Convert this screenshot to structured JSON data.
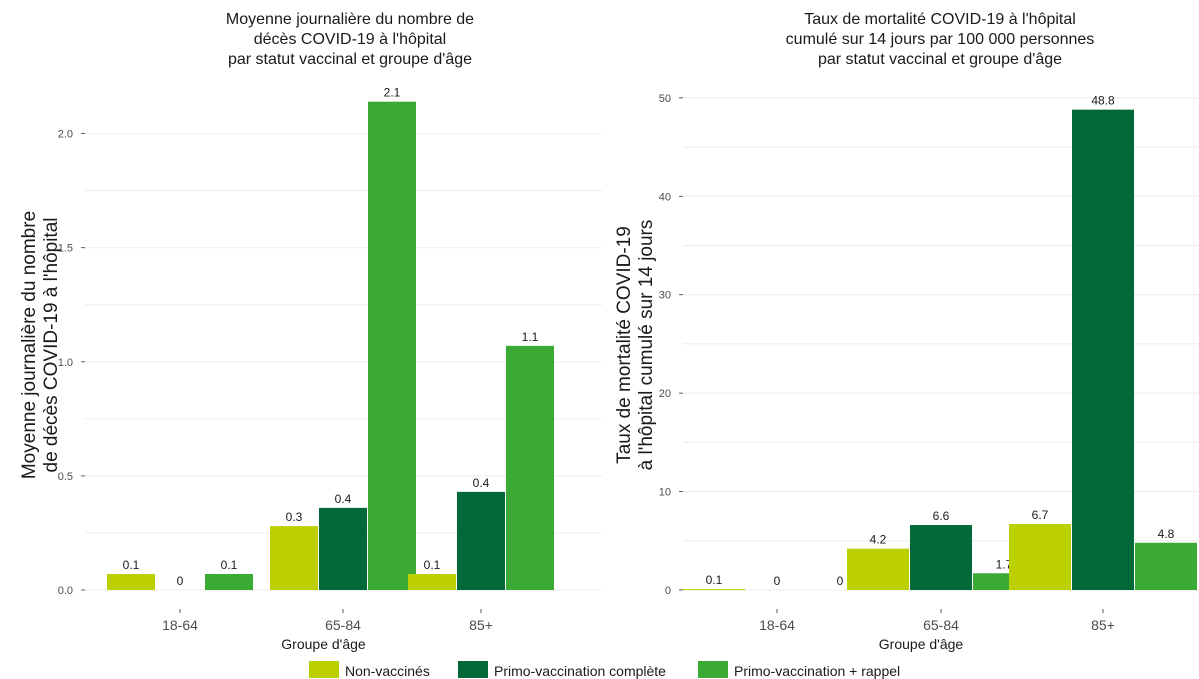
{
  "colors": {
    "Non-vaccinés": "#bccf00",
    "Primo-vaccination complète": "#006937",
    "Primo-vaccination + rappel": "#3aaa35"
  },
  "legend": [
    "Non-vaccinés",
    "Primo-vaccination complète",
    "Primo-vaccination + rappel"
  ],
  "chart_data": [
    {
      "type": "bar",
      "title": [
        "Moyenne journalière du nombre de",
        "décès COVID-19 à l'hôpital",
        "par statut vaccinal et groupe d'âge"
      ],
      "ylabel": [
        "Moyenne journalière du nombre",
        "de décès COVID-19 à l'hôpital"
      ],
      "xlabel": "Groupe d'âge",
      "categories": [
        "18-64",
        "65-84",
        "85+"
      ],
      "ylim": [
        0,
        2.2
      ],
      "yticks": [
        0,
        0.5,
        1.0,
        1.5,
        2.0
      ],
      "ytick_labels": [
        "0.0",
        "0.5",
        "1.0",
        "1.5",
        "2.0"
      ],
      "series": [
        {
          "name": "Non-vaccinés",
          "values": [
            0.07,
            0.28,
            0.07
          ],
          "labels": [
            "0.1",
            "0.3",
            "0.1"
          ]
        },
        {
          "name": "Primo-vaccination complète",
          "values": [
            0,
            0.36,
            0.43
          ],
          "labels": [
            "0",
            "0.4",
            "0.4"
          ]
        },
        {
          "name": "Primo-vaccination + rappel",
          "values": [
            0.07,
            2.14,
            1.07
          ],
          "labels": [
            "0.1",
            "2.1",
            "1.1"
          ]
        }
      ]
    },
    {
      "type": "bar",
      "title": [
        "Taux de mortalité COVID-19 à l'hôpital",
        "cumulé sur 14 jours par 100 000 personnes",
        "par statut vaccinal et groupe d'âge"
      ],
      "ylabel": [
        "Taux de mortalité COVID-19",
        "à l'hôpital cumulé sur 14 jours"
      ],
      "xlabel": "Groupe d'âge",
      "categories": [
        "18-64",
        "65-84",
        "85+"
      ],
      "ylim": [
        0,
        51
      ],
      "yticks": [
        0,
        10,
        20,
        30,
        40,
        50
      ],
      "ytick_labels": [
        "0",
        "10",
        "20",
        "30",
        "40",
        "50"
      ],
      "series": [
        {
          "name": "Non-vaccinés",
          "values": [
            0.1,
            4.2,
            6.7
          ],
          "labels": [
            "0.1",
            "4.2",
            "6.7"
          ]
        },
        {
          "name": "Primo-vaccination complète",
          "values": [
            0,
            6.6,
            48.8
          ],
          "labels": [
            "0",
            "6.6",
            "48.8"
          ]
        },
        {
          "name": "Primo-vaccination + rappel",
          "values": [
            0,
            1.7,
            4.8
          ],
          "labels": [
            "0",
            "1.7",
            "4.8"
          ]
        }
      ]
    }
  ]
}
